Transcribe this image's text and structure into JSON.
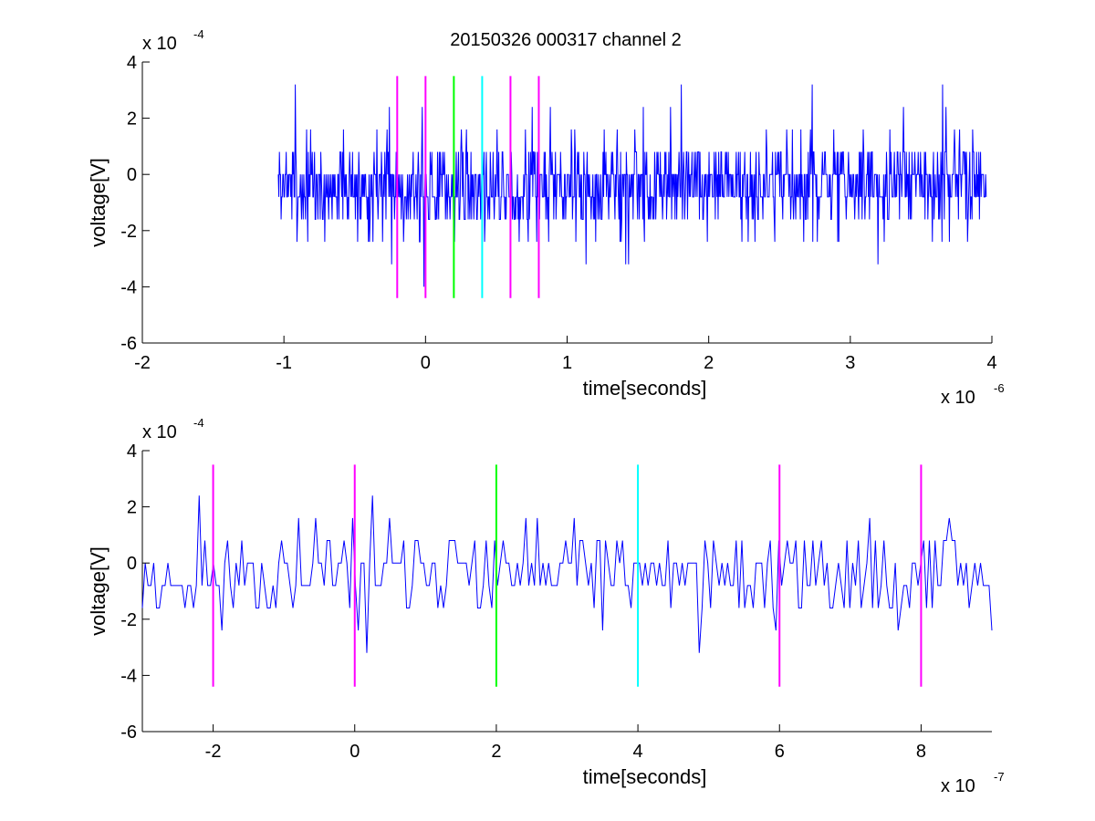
{
  "figure": {
    "title": "20150326 000317 channel 2"
  },
  "chart_data": [
    {
      "type": "line",
      "title": "20150326 000317 channel 2",
      "xlabel": "time[seconds]",
      "ylabel": "voltage[V]",
      "x_multiplier": "x 10",
      "x_multiplier_exp": "-6",
      "y_multiplier": "x 10",
      "y_multiplier_exp": "-4",
      "xlim": [
        -2,
        4
      ],
      "ylim": [
        -6,
        4
      ],
      "xticks": [
        -2,
        -1,
        0,
        1,
        2,
        3,
        4
      ],
      "xtick_labels": [
        "-2",
        "-1",
        "0",
        "1",
        "2",
        "3",
        "4"
      ],
      "yticks": [
        -6,
        -4,
        -2,
        0,
        2,
        4
      ],
      "ytick_labels": [
        "-6",
        "-4",
        "-2",
        "0",
        "2",
        "4"
      ],
      "grid": false,
      "signal": {
        "color": "#0000ff",
        "x_start": -1.04,
        "x_end": 3.96,
        "samples": 1250,
        "quantization_step": 0.8,
        "range": [
          -4.0,
          3.2
        ],
        "seed": 7
      },
      "markers": [
        {
          "x": -0.2,
          "ymin": -4.4,
          "ymax": 3.5,
          "color": "#ff00ff"
        },
        {
          "x": 0.0,
          "ymin": -4.4,
          "ymax": 3.5,
          "color": "#ff00ff"
        },
        {
          "x": 0.2,
          "ymin": -4.4,
          "ymax": 3.5,
          "color": "#00ff00"
        },
        {
          "x": 0.4,
          "ymin": -4.4,
          "ymax": 3.5,
          "color": "#00ffff"
        },
        {
          "x": 0.6,
          "ymin": -4.4,
          "ymax": 3.5,
          "color": "#ff00ff"
        },
        {
          "x": 0.8,
          "ymin": -4.4,
          "ymax": 3.5,
          "color": "#ff00ff"
        }
      ]
    },
    {
      "type": "line",
      "title": "",
      "xlabel": "time[seconds]",
      "ylabel": "voltage[V]",
      "x_multiplier": "x 10",
      "x_multiplier_exp": "-7",
      "y_multiplier": "x 10",
      "y_multiplier_exp": "-4",
      "xlim": [
        -3,
        9
      ],
      "ylim": [
        -6,
        4
      ],
      "xticks": [
        -2,
        0,
        2,
        4,
        6,
        8
      ],
      "xtick_labels": [
        "-2",
        "0",
        "2",
        "4",
        "6",
        "8"
      ],
      "yticks": [
        -6,
        -4,
        -2,
        0,
        2,
        4
      ],
      "ytick_labels": [
        "-6",
        "-4",
        "-2",
        "0",
        "2",
        "4"
      ],
      "grid": false,
      "signal": {
        "color": "#0000ff",
        "x_start": -3.0,
        "x_end": 9.0,
        "samples": 300,
        "quantization_step": 0.8,
        "range": [
          -4.0,
          2.4
        ],
        "seed": 11
      },
      "markers": [
        {
          "x": -2,
          "ymin": -4.4,
          "ymax": 3.5,
          "color": "#ff00ff"
        },
        {
          "x": 0,
          "ymin": -4.4,
          "ymax": 3.5,
          "color": "#ff00ff"
        },
        {
          "x": 2,
          "ymin": -4.4,
          "ymax": 3.5,
          "color": "#00ff00"
        },
        {
          "x": 4,
          "ymin": -4.4,
          "ymax": 3.5,
          "color": "#00ffff"
        },
        {
          "x": 6,
          "ymin": -4.4,
          "ymax": 3.5,
          "color": "#ff00ff"
        },
        {
          "x": 8,
          "ymin": -4.4,
          "ymax": 3.5,
          "color": "#ff00ff"
        }
      ]
    }
  ]
}
